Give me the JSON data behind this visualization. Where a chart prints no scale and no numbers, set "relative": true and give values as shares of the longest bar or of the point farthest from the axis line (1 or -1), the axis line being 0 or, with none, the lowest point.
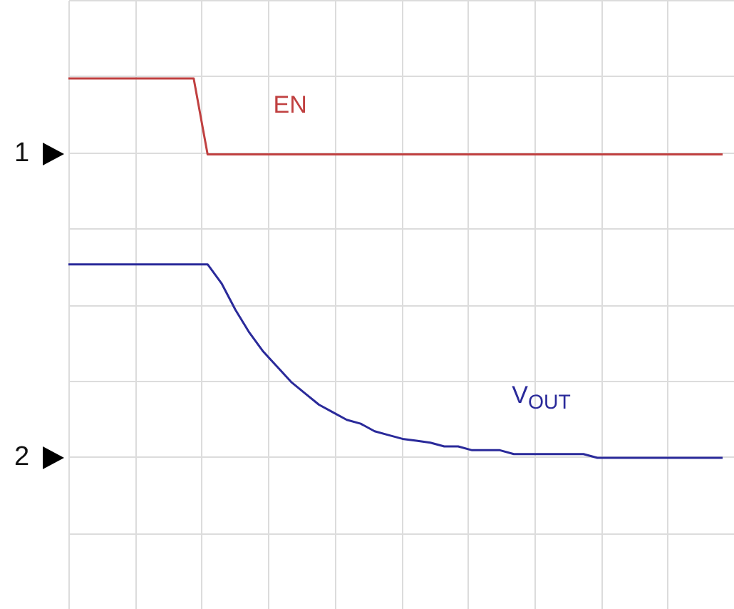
{
  "chart_data": {
    "type": "line",
    "relative": true,
    "grid": true,
    "legend": false,
    "line_style": "solid",
    "marker": "none",
    "categories": [
      null,
      null,
      null,
      null,
      null,
      null,
      null,
      null,
      null,
      null,
      null,
      null,
      null,
      null,
      null,
      null,
      null,
      null,
      null,
      null,
      null,
      null,
      null,
      null,
      null,
      null,
      null,
      null,
      null,
      null,
      null,
      null,
      null,
      null,
      null,
      null,
      null,
      null,
      null,
      null,
      null,
      null,
      null,
      null,
      null,
      null,
      null,
      null
    ],
    "annotations": [
      "1",
      "2"
    ],
    "series": [
      {
        "name": "EN",
        "color": "#c04040",
        "values": [
          1,
          1,
          1,
          1,
          1,
          1,
          1,
          1,
          1,
          1,
          0.8,
          0.8,
          0.8,
          0.8,
          0.8,
          0.8,
          0.8,
          0.8,
          0.8,
          0.8,
          0.8,
          0.8,
          0.8,
          0.8,
          0.8,
          0.8,
          0.8,
          0.8,
          0.8,
          0.8,
          0.8,
          0.8,
          0.8,
          0.8,
          0.8,
          0.8,
          0.8,
          0.8,
          0.8,
          0.8,
          0.8,
          0.8,
          0.8,
          0.8,
          0.8,
          0.8,
          0.8,
          0.8
        ]
      },
      {
        "name": "V$_{OUT}$",
        "color": "#2a2a9a",
        "values": [
          0.51,
          0.51,
          0.51,
          0.51,
          0.51,
          0.51,
          0.51,
          0.51,
          0.51,
          0.51,
          0.51,
          0.46,
          0.39,
          0.33,
          0.28,
          0.24,
          0.2,
          0.17,
          0.14,
          0.12,
          0.1,
          0.09,
          0.07,
          0.06,
          0.05,
          0.045,
          0.04,
          0.03,
          0.03,
          0.02,
          0.02,
          0.02,
          0.01,
          0.01,
          0.01,
          0.01,
          0.01,
          0.01,
          0,
          0,
          0,
          0,
          0,
          0,
          0,
          0,
          0,
          0
        ]
      }
    ]
  }
}
